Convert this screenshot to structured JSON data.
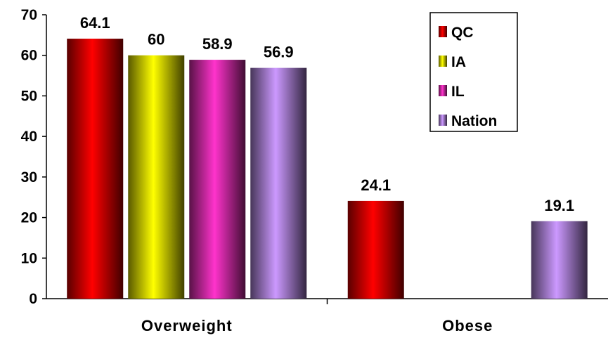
{
  "chart_data": {
    "type": "bar",
    "categories": [
      "Overweight",
      "Obese"
    ],
    "series": [
      {
        "name": "QC",
        "values": [
          64.1,
          24.1
        ],
        "color": "#ff0000"
      },
      {
        "name": "IA",
        "values": [
          60,
          null
        ],
        "color": "#ffff00"
      },
      {
        "name": "IL",
        "values": [
          58.9,
          null
        ],
        "color": "#ff33cc"
      },
      {
        "name": "Nation",
        "values": [
          56.9,
          19.1
        ],
        "color": "#cc99ff"
      }
    ],
    "data_labels": [
      [
        "64.1",
        "60",
        "58.9",
        "56.9"
      ],
      [
        "24.1",
        "",
        "",
        "19.1"
      ]
    ],
    "yticks": [
      "0",
      "10",
      "20",
      "30",
      "40",
      "50",
      "60",
      "70"
    ],
    "ylim": [
      0,
      70
    ],
    "grid": false,
    "legend_position": "top-right"
  }
}
